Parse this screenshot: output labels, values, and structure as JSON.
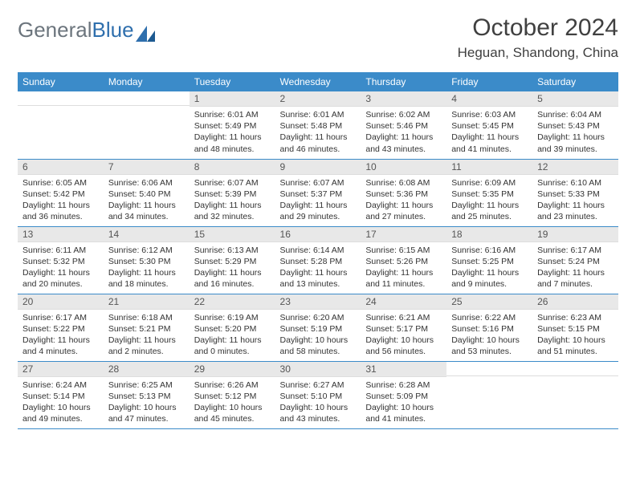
{
  "brand": {
    "part1": "General",
    "part2": "Blue"
  },
  "title": "October 2024",
  "location": "Heguan, Shandong, China",
  "colors": {
    "header_bg": "#3b8bc9",
    "header_text": "#ffffff",
    "daynum_bg": "#e8e8e8",
    "border": "#3b8bc9",
    "page_bg": "#ffffff",
    "logo_gray": "#6c757d",
    "logo_blue": "#2f6fad",
    "text": "#333333"
  },
  "weekdays": [
    "Sunday",
    "Monday",
    "Tuesday",
    "Wednesday",
    "Thursday",
    "Friday",
    "Saturday"
  ],
  "weeks": [
    [
      {
        "day": "",
        "sunrise": "",
        "sunset": "",
        "daylight": ""
      },
      {
        "day": "",
        "sunrise": "",
        "sunset": "",
        "daylight": ""
      },
      {
        "day": "1",
        "sunrise": "Sunrise: 6:01 AM",
        "sunset": "Sunset: 5:49 PM",
        "daylight": "Daylight: 11 hours and 48 minutes."
      },
      {
        "day": "2",
        "sunrise": "Sunrise: 6:01 AM",
        "sunset": "Sunset: 5:48 PM",
        "daylight": "Daylight: 11 hours and 46 minutes."
      },
      {
        "day": "3",
        "sunrise": "Sunrise: 6:02 AM",
        "sunset": "Sunset: 5:46 PM",
        "daylight": "Daylight: 11 hours and 43 minutes."
      },
      {
        "day": "4",
        "sunrise": "Sunrise: 6:03 AM",
        "sunset": "Sunset: 5:45 PM",
        "daylight": "Daylight: 11 hours and 41 minutes."
      },
      {
        "day": "5",
        "sunrise": "Sunrise: 6:04 AM",
        "sunset": "Sunset: 5:43 PM",
        "daylight": "Daylight: 11 hours and 39 minutes."
      }
    ],
    [
      {
        "day": "6",
        "sunrise": "Sunrise: 6:05 AM",
        "sunset": "Sunset: 5:42 PM",
        "daylight": "Daylight: 11 hours and 36 minutes."
      },
      {
        "day": "7",
        "sunrise": "Sunrise: 6:06 AM",
        "sunset": "Sunset: 5:40 PM",
        "daylight": "Daylight: 11 hours and 34 minutes."
      },
      {
        "day": "8",
        "sunrise": "Sunrise: 6:07 AM",
        "sunset": "Sunset: 5:39 PM",
        "daylight": "Daylight: 11 hours and 32 minutes."
      },
      {
        "day": "9",
        "sunrise": "Sunrise: 6:07 AM",
        "sunset": "Sunset: 5:37 PM",
        "daylight": "Daylight: 11 hours and 29 minutes."
      },
      {
        "day": "10",
        "sunrise": "Sunrise: 6:08 AM",
        "sunset": "Sunset: 5:36 PM",
        "daylight": "Daylight: 11 hours and 27 minutes."
      },
      {
        "day": "11",
        "sunrise": "Sunrise: 6:09 AM",
        "sunset": "Sunset: 5:35 PM",
        "daylight": "Daylight: 11 hours and 25 minutes."
      },
      {
        "day": "12",
        "sunrise": "Sunrise: 6:10 AM",
        "sunset": "Sunset: 5:33 PM",
        "daylight": "Daylight: 11 hours and 23 minutes."
      }
    ],
    [
      {
        "day": "13",
        "sunrise": "Sunrise: 6:11 AM",
        "sunset": "Sunset: 5:32 PM",
        "daylight": "Daylight: 11 hours and 20 minutes."
      },
      {
        "day": "14",
        "sunrise": "Sunrise: 6:12 AM",
        "sunset": "Sunset: 5:30 PM",
        "daylight": "Daylight: 11 hours and 18 minutes."
      },
      {
        "day": "15",
        "sunrise": "Sunrise: 6:13 AM",
        "sunset": "Sunset: 5:29 PM",
        "daylight": "Daylight: 11 hours and 16 minutes."
      },
      {
        "day": "16",
        "sunrise": "Sunrise: 6:14 AM",
        "sunset": "Sunset: 5:28 PM",
        "daylight": "Daylight: 11 hours and 13 minutes."
      },
      {
        "day": "17",
        "sunrise": "Sunrise: 6:15 AM",
        "sunset": "Sunset: 5:26 PM",
        "daylight": "Daylight: 11 hours and 11 minutes."
      },
      {
        "day": "18",
        "sunrise": "Sunrise: 6:16 AM",
        "sunset": "Sunset: 5:25 PM",
        "daylight": "Daylight: 11 hours and 9 minutes."
      },
      {
        "day": "19",
        "sunrise": "Sunrise: 6:17 AM",
        "sunset": "Sunset: 5:24 PM",
        "daylight": "Daylight: 11 hours and 7 minutes."
      }
    ],
    [
      {
        "day": "20",
        "sunrise": "Sunrise: 6:17 AM",
        "sunset": "Sunset: 5:22 PM",
        "daylight": "Daylight: 11 hours and 4 minutes."
      },
      {
        "day": "21",
        "sunrise": "Sunrise: 6:18 AM",
        "sunset": "Sunset: 5:21 PM",
        "daylight": "Daylight: 11 hours and 2 minutes."
      },
      {
        "day": "22",
        "sunrise": "Sunrise: 6:19 AM",
        "sunset": "Sunset: 5:20 PM",
        "daylight": "Daylight: 11 hours and 0 minutes."
      },
      {
        "day": "23",
        "sunrise": "Sunrise: 6:20 AM",
        "sunset": "Sunset: 5:19 PM",
        "daylight": "Daylight: 10 hours and 58 minutes."
      },
      {
        "day": "24",
        "sunrise": "Sunrise: 6:21 AM",
        "sunset": "Sunset: 5:17 PM",
        "daylight": "Daylight: 10 hours and 56 minutes."
      },
      {
        "day": "25",
        "sunrise": "Sunrise: 6:22 AM",
        "sunset": "Sunset: 5:16 PM",
        "daylight": "Daylight: 10 hours and 53 minutes."
      },
      {
        "day": "26",
        "sunrise": "Sunrise: 6:23 AM",
        "sunset": "Sunset: 5:15 PM",
        "daylight": "Daylight: 10 hours and 51 minutes."
      }
    ],
    [
      {
        "day": "27",
        "sunrise": "Sunrise: 6:24 AM",
        "sunset": "Sunset: 5:14 PM",
        "daylight": "Daylight: 10 hours and 49 minutes."
      },
      {
        "day": "28",
        "sunrise": "Sunrise: 6:25 AM",
        "sunset": "Sunset: 5:13 PM",
        "daylight": "Daylight: 10 hours and 47 minutes."
      },
      {
        "day": "29",
        "sunrise": "Sunrise: 6:26 AM",
        "sunset": "Sunset: 5:12 PM",
        "daylight": "Daylight: 10 hours and 45 minutes."
      },
      {
        "day": "30",
        "sunrise": "Sunrise: 6:27 AM",
        "sunset": "Sunset: 5:10 PM",
        "daylight": "Daylight: 10 hours and 43 minutes."
      },
      {
        "day": "31",
        "sunrise": "Sunrise: 6:28 AM",
        "sunset": "Sunset: 5:09 PM",
        "daylight": "Daylight: 10 hours and 41 minutes."
      },
      {
        "day": "",
        "sunrise": "",
        "sunset": "",
        "daylight": ""
      },
      {
        "day": "",
        "sunrise": "",
        "sunset": "",
        "daylight": ""
      }
    ]
  ]
}
